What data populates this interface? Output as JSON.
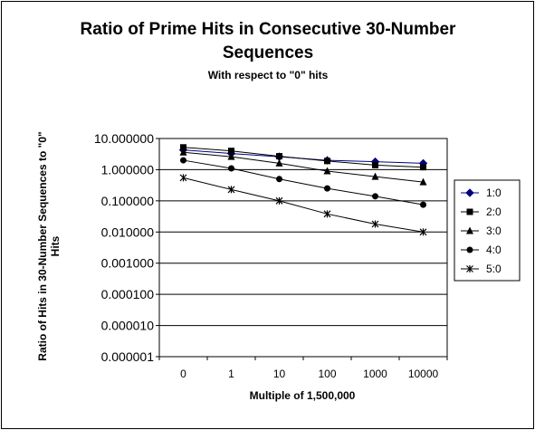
{
  "chart_data": {
    "type": "line",
    "title_line1": "Ratio of Prime Hits in Consecutive 30-Number",
    "title_line2": "Sequences",
    "subtitle": "With respect to \"0\" hits",
    "xlabel": "Multiple of 1,500,000",
    "ylabel_line1": "Ratio of Hits in 30-Number Sequences to \"0\"",
    "ylabel_line2": "Hits",
    "y_scale": "log",
    "ylim": [
      1e-06,
      10
    ],
    "grid": "horizontal",
    "legend_position": "right",
    "categories": [
      "0",
      "1",
      "10",
      "100",
      "1000",
      "10000"
    ],
    "y_tick_labels": [
      "10.000000",
      "1.000000",
      "0.100000",
      "0.010000",
      "0.001000",
      "0.000100",
      "0.000010",
      "0.000001"
    ],
    "y_tick_values": [
      10,
      1,
      0.1,
      0.01,
      0.001,
      0.0001,
      1e-05,
      1e-06
    ],
    "series": [
      {
        "name": "1:0",
        "marker": "diamond",
        "color": "#00007f",
        "values": [
          4.3,
          3.3,
          2.6,
          2.0,
          1.8,
          1.6
        ]
      },
      {
        "name": "2:0",
        "marker": "square",
        "color": "#000000",
        "values": [
          5.2,
          4.0,
          2.7,
          1.9,
          1.4,
          1.2
        ]
      },
      {
        "name": "3:0",
        "marker": "triangle",
        "color": "#000000",
        "values": [
          3.6,
          2.6,
          1.6,
          0.9,
          0.6,
          0.4
        ]
      },
      {
        "name": "4:0",
        "marker": "circle",
        "color": "#000000",
        "values": [
          2.0,
          1.1,
          0.5,
          0.25,
          0.14,
          0.075
        ]
      },
      {
        "name": "5:0",
        "marker": "star",
        "color": "#000000",
        "values": [
          0.55,
          0.23,
          0.1,
          0.038,
          0.018,
          0.01
        ]
      }
    ]
  }
}
